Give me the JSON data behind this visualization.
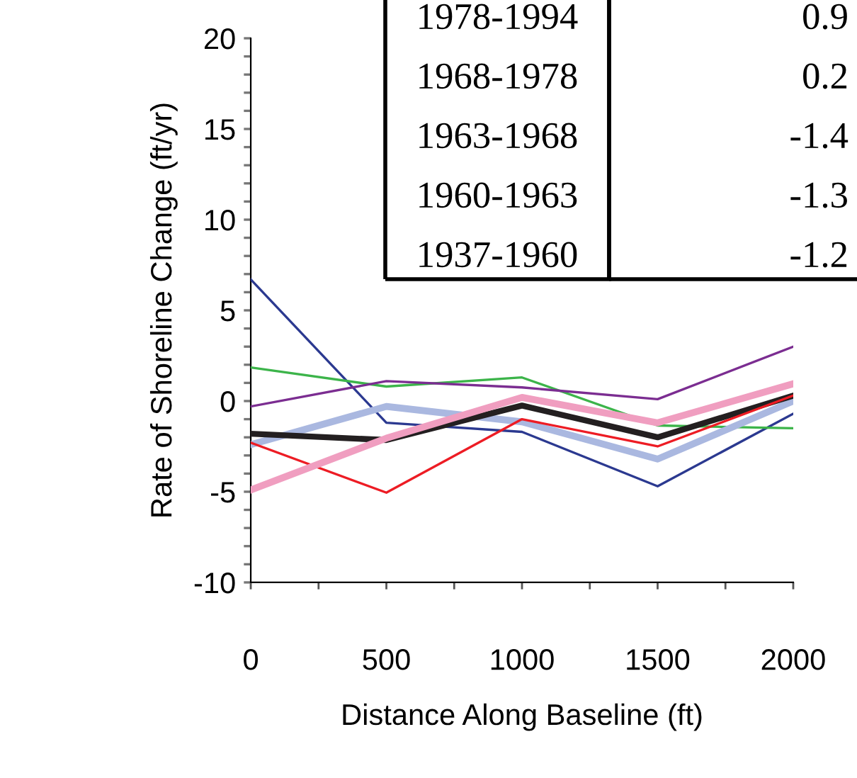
{
  "chart_data": {
    "type": "line",
    "xlabel": "Distance Along Baseline (ft)",
    "ylabel": "Rate of Shoreline Change (ft/yr)",
    "x": [
      0,
      500,
      1000,
      1500,
      2000
    ],
    "series": [
      {
        "color": "#2b3990",
        "values": [
          6.7,
          -1.2,
          -1.7,
          -4.7,
          -0.7
        ]
      },
      {
        "color": "#3cb44a",
        "values": [
          1.85,
          0.8,
          1.3,
          -1.35,
          -1.5
        ]
      },
      {
        "color": "#7b2d91",
        "values": [
          -0.3,
          1.1,
          0.75,
          0.1,
          3.0
        ]
      },
      {
        "color": "#aab8e0",
        "values": [
          -2.4,
          -0.3,
          -1.15,
          -3.2,
          0.0
        ]
      },
      {
        "color": "#231f20",
        "values": [
          -1.8,
          -2.15,
          -0.25,
          -2.0,
          0.3
        ]
      },
      {
        "color": "#ed1c24",
        "values": [
          -2.3,
          -5.05,
          -1.0,
          -2.5,
          0.3
        ]
      },
      {
        "color": "#f09ec0",
        "values": [
          -4.9,
          -2.05,
          0.2,
          -1.2,
          0.95
        ]
      }
    ],
    "xlim": [
      0,
      2000
    ],
    "ylim": [
      -10,
      20
    ],
    "xticks": [
      0,
      {
        "value": 250,
        "label": null
      },
      500,
      {
        "value": 750,
        "label": null
      },
      1000,
      {
        "value": 1250,
        "label": null
      },
      1500,
      {
        "value": 1750,
        "label": null
      },
      2000
    ],
    "yticks": [
      -10,
      {
        "value": -9,
        "label": null
      },
      {
        "value": -8,
        "label": null
      },
      {
        "value": -7,
        "label": null
      },
      {
        "value": -6,
        "label": null
      },
      -5,
      {
        "value": -4,
        "label": null
      },
      {
        "value": -3,
        "label": null
      },
      {
        "value": -2,
        "label": null
      },
      {
        "value": -1,
        "label": null
      },
      0,
      {
        "value": 1,
        "label": null
      },
      {
        "value": 2,
        "label": null
      },
      {
        "value": 3,
        "label": null
      },
      {
        "value": 4,
        "label": null
      },
      5,
      {
        "value": 6,
        "label": null
      },
      {
        "value": 7,
        "label": null
      },
      {
        "value": 8,
        "label": null
      },
      {
        "value": 9,
        "label": null
      },
      10,
      {
        "value": 11,
        "label": null
      },
      {
        "value": 12,
        "label": null
      },
      {
        "value": 13,
        "label": null
      },
      {
        "value": 14,
        "label": null
      },
      15,
      {
        "value": 16,
        "label": null
      },
      {
        "value": 17,
        "label": null
      },
      {
        "value": 18,
        "label": null
      },
      {
        "value": 19,
        "label": null
      },
      20
    ],
    "grid": false,
    "legend": false,
    "marker": "none",
    "line_style": "solid",
    "annotations": [
      "1978-1994",
      "0.9",
      "1968-1978",
      "0.2",
      "1963-1968",
      "-1.4",
      "1960-1963",
      "-1.3",
      "1937-1960",
      "-1.2"
    ]
  }
}
